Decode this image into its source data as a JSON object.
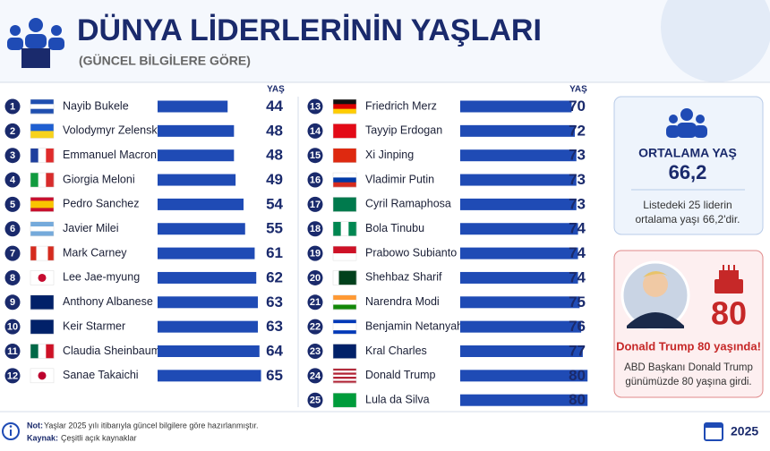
{
  "header": {
    "title": "DÜNYA LİDERLERİNİN YAŞLARI",
    "subtitle": "(GÜNCEL BİLGİLERE GÖRE)"
  },
  "chart_data": {
    "type": "bar",
    "orientation": "horizontal",
    "value_label": "YAŞ",
    "ranks": [
      "1",
      "2",
      "3",
      "4",
      "5",
      "6",
      "7",
      "8",
      "9",
      "10",
      "11",
      "12",
      "13",
      "14",
      "15",
      "16",
      "17",
      "18",
      "19",
      "20",
      "21",
      "22",
      "23",
      "24",
      "25"
    ],
    "categories": [
      "Nayib Bukele",
      "Volodymyr Zelensky",
      "Emmanuel Macron",
      "Giorgia Meloni",
      "Pedro Sanchez",
      "Javier Milei",
      "Mark Carney",
      "Lee Jae-myung",
      "Anthony Albanese",
      "Keir Starmer",
      "Claudia Sheinbaum",
      "Sanae Takaichi",
      "Friedrich Merz",
      "Tayyip Erdogan",
      "Xi Jinping",
      "Vladimir Putin",
      "Cyril Ramaphosa",
      "Bola Tinubu",
      "Prabowo Subianto",
      "Shehbaz Sharif",
      "Narendra Modi",
      "Benjamin Netanyahu",
      "Kral Charles",
      "Donald Trump",
      "Lula da Silva"
    ],
    "values": [
      44,
      48,
      48,
      49,
      54,
      55,
      61,
      62,
      63,
      63,
      64,
      65,
      70,
      72,
      73,
      73,
      73,
      74,
      74,
      74,
      75,
      76,
      77,
      80,
      80
    ],
    "color": "#1f4bb5",
    "value_color": "#1a2a6c",
    "highlight_color": "#c62828",
    "highlight_categories": [
      "Donald Trump",
      "Lula da Silva"
    ],
    "xlim": [
      0,
      90
    ]
  },
  "average_card": {
    "title": "ORTALAMA YAŞ",
    "value": "66,2",
    "text": [
      "Listedeki 25 liderin",
      "ortalama yaşı 66,2'dir."
    ]
  },
  "trump_card": {
    "age": "80",
    "headline": "Donald Trump 80 yaşında!",
    "text": [
      "ABD Başkanı Donald Trump",
      "günümüzde 80 yaşına girdi."
    ]
  },
  "footer": {
    "note_label": "Not:",
    "note": "Yaşlar 2025 yılı itibarıyla güncel bilgilere göre hazırlanmıştır.",
    "source_label": "Kaynak:",
    "source": "Çeşitli açık kaynaklar",
    "year": "2025"
  }
}
